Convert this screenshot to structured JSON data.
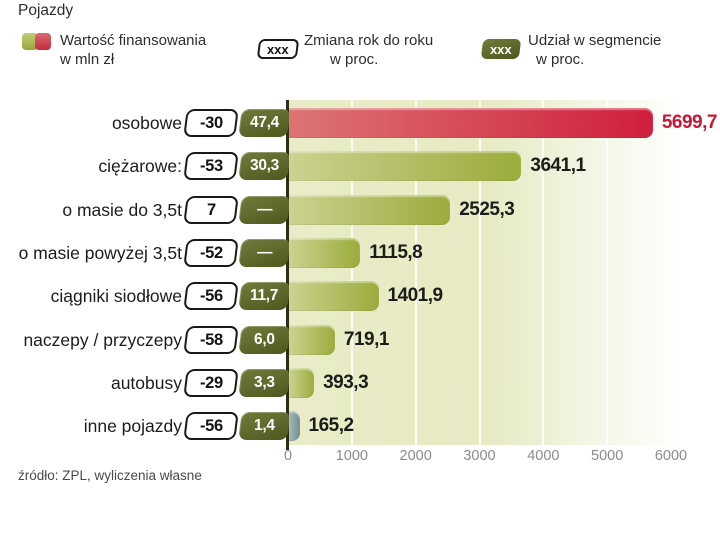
{
  "title": "Pojazdy",
  "legend": {
    "value": {
      "line1": "Wartość finansowania",
      "line2": "w mln zł"
    },
    "change": {
      "badge": "xxx",
      "line1": "Zmiana rok do roku",
      "line2": "w proc."
    },
    "share": {
      "badge": "xxx",
      "line1": "Udział w segmencie",
      "line2": "w proc."
    }
  },
  "source": "źródło: ZPL, wyliczenia własne",
  "chart_data": {
    "type": "bar",
    "orientation": "horizontal",
    "title": "Pojazdy",
    "categories": [
      "osobowe",
      "ciężarowe:",
      "o masie do 3,5t",
      "o masie powyżej 3,5t",
      "ciągniki siodłowe",
      "naczepy / przyczepy",
      "autobusy",
      "inne pojazdy"
    ],
    "series": [
      {
        "name": "Wartość finansowania w mln zł",
        "values": [
          5699.7,
          3641.1,
          2525.3,
          1115.8,
          1401.9,
          719.1,
          393.3,
          165.2
        ]
      },
      {
        "name": "Zmiana rok do roku w proc.",
        "values": [
          -30,
          -53,
          7,
          -52,
          -56,
          -58,
          -29,
          -56
        ]
      },
      {
        "name": "Udział w segmencie w proc.",
        "values": [
          47.4,
          30.3,
          null,
          null,
          11.7,
          6.0,
          3.3,
          1.4
        ]
      }
    ],
    "value_labels": [
      "5699,7",
      "3641,1",
      "2525,3",
      "1115,8",
      "1401,9",
      "719,1",
      "393,3",
      "165,2"
    ],
    "change_labels": [
      "-30",
      "-53",
      "7",
      "-52",
      "-56",
      "-58",
      "-29",
      "-56"
    ],
    "share_labels": [
      "47,4",
      "30,3",
      "—",
      "—",
      "11,7",
      "6,0",
      "3,3",
      "1,4"
    ],
    "xlim": [
      0,
      6000
    ],
    "xticks": [
      "0",
      "1000",
      "2000",
      "3000",
      "4000",
      "5000",
      "6000"
    ],
    "grid": true,
    "legend_position": "top",
    "row_styles": [
      "red",
      "olive",
      "olive",
      "olive",
      "olive",
      "olive",
      "olive",
      "slate"
    ],
    "palette": {
      "red": {
        "bar_from": "#dc7473",
        "bar_to": "#d01f3e",
        "value_color": "#c81734"
      },
      "olive": {
        "bar_from": "#ccd290",
        "bar_to": "#9cab3c",
        "value_color": "#1c1c1a"
      },
      "slate": {
        "bar_from": "#a7bab8",
        "bar_to": "#6d8e98",
        "value_color": "#1c1c1a"
      }
    }
  }
}
